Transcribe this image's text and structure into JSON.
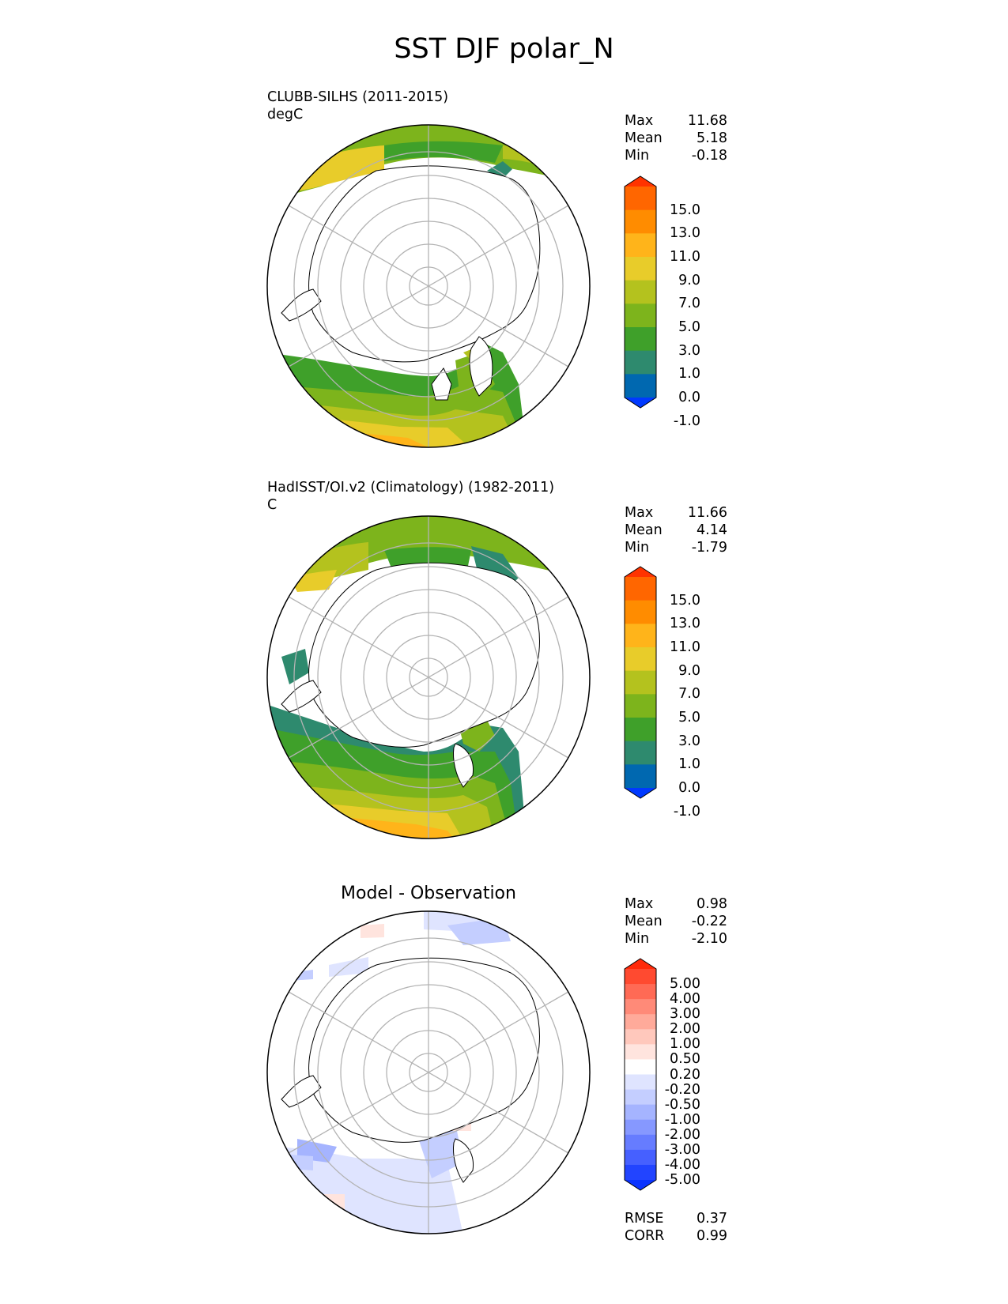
{
  "title": "SST DJF polar_N",
  "panels": [
    {
      "left_title": "CLUBB-SILHS (2011-2015)",
      "units": "degC",
      "center_title": "",
      "stats": [
        {
          "label": "Max",
          "value": "11.68"
        },
        {
          "label": "Mean",
          "value": "5.18"
        },
        {
          "label": "Min",
          "value": "-0.18"
        }
      ],
      "colorbar": {
        "ticks": [
          "15.0",
          "13.0",
          "11.0",
          "9.0",
          "7.0",
          "5.0",
          "3.0",
          "1.0",
          "0.0",
          "-1.0"
        ],
        "colors": [
          "#ff3300",
          "#ff6600",
          "#ff8c00",
          "#ffb41a",
          "#e8cc2a",
          "#b4c21e",
          "#7db41c",
          "#3fa02a",
          "#2e8a6e",
          "#0068b0",
          "#0039ff"
        ],
        "extend": "both"
      }
    },
    {
      "left_title": "HadISST/OI.v2 (Climatology) (1982-2011)",
      "units": "C",
      "center_title": "",
      "stats": [
        {
          "label": "Max",
          "value": "11.66"
        },
        {
          "label": "Mean",
          "value": "4.14"
        },
        {
          "label": "Min",
          "value": "-1.79"
        }
      ],
      "colorbar": {
        "ticks": [
          "15.0",
          "13.0",
          "11.0",
          "9.0",
          "7.0",
          "5.0",
          "3.0",
          "1.0",
          "0.0",
          "-1.0"
        ],
        "colors": [
          "#ff3300",
          "#ff6600",
          "#ff8c00",
          "#ffb41a",
          "#e8cc2a",
          "#b4c21e",
          "#7db41c",
          "#3fa02a",
          "#2e8a6e",
          "#0068b0",
          "#0039ff"
        ],
        "extend": "both"
      }
    },
    {
      "left_title": "",
      "units": "",
      "center_title": "Model - Observation",
      "stats": [
        {
          "label": "Max",
          "value": "0.98"
        },
        {
          "label": "Mean",
          "value": "-0.22"
        },
        {
          "label": "Min",
          "value": "-2.10"
        }
      ],
      "colorbar": {
        "ticks": [
          "5.00",
          "4.00",
          "3.00",
          "2.00",
          "1.00",
          "0.50",
          "0.20",
          "-0.20",
          "-0.50",
          "-1.00",
          "-2.00",
          "-3.00",
          "-4.00",
          "-5.00"
        ],
        "colors": [
          "#ff2a0a",
          "#ff4a30",
          "#ff6a55",
          "#ff8a78",
          "#ffaa9a",
          "#ffc8bc",
          "#ffe4de",
          "#ffffff",
          "#dfe4ff",
          "#c4ceff",
          "#a5b4ff",
          "#8698ff",
          "#667cff",
          "#4660ff",
          "#2244ff",
          "#0a33ff"
        ],
        "extend": "both"
      },
      "extra_stats": [
        {
          "label": "RMSE",
          "value": "0.37"
        },
        {
          "label": "CORR",
          "value": "0.99"
        }
      ]
    }
  ],
  "chart_data": {
    "type": "heatmap",
    "projection": "north polar stereographic",
    "season": "DJF",
    "variable": "SST",
    "panels": [
      {
        "name": "CLUBB-SILHS (2011-2015)",
        "units": "degC",
        "max": 11.68,
        "mean": 5.18,
        "min": -0.18
      },
      {
        "name": "HadISST/OI.v2 (Climatology) (1982-2011)",
        "units": "C",
        "max": 11.66,
        "mean": 4.14,
        "min": -1.79
      },
      {
        "name": "Model - Observation",
        "max": 0.98,
        "mean": -0.22,
        "min": -2.1,
        "rmse": 0.37,
        "corr": 0.99
      }
    ],
    "levels_mean": [
      -1.0,
      0.0,
      1.0,
      3.0,
      5.0,
      7.0,
      9.0,
      11.0,
      13.0,
      15.0
    ],
    "levels_diff": [
      -5.0,
      -4.0,
      -3.0,
      -2.0,
      -1.0,
      -0.5,
      -0.2,
      0.2,
      0.5,
      1.0,
      2.0,
      3.0,
      4.0,
      5.0
    ],
    "grid": true
  }
}
